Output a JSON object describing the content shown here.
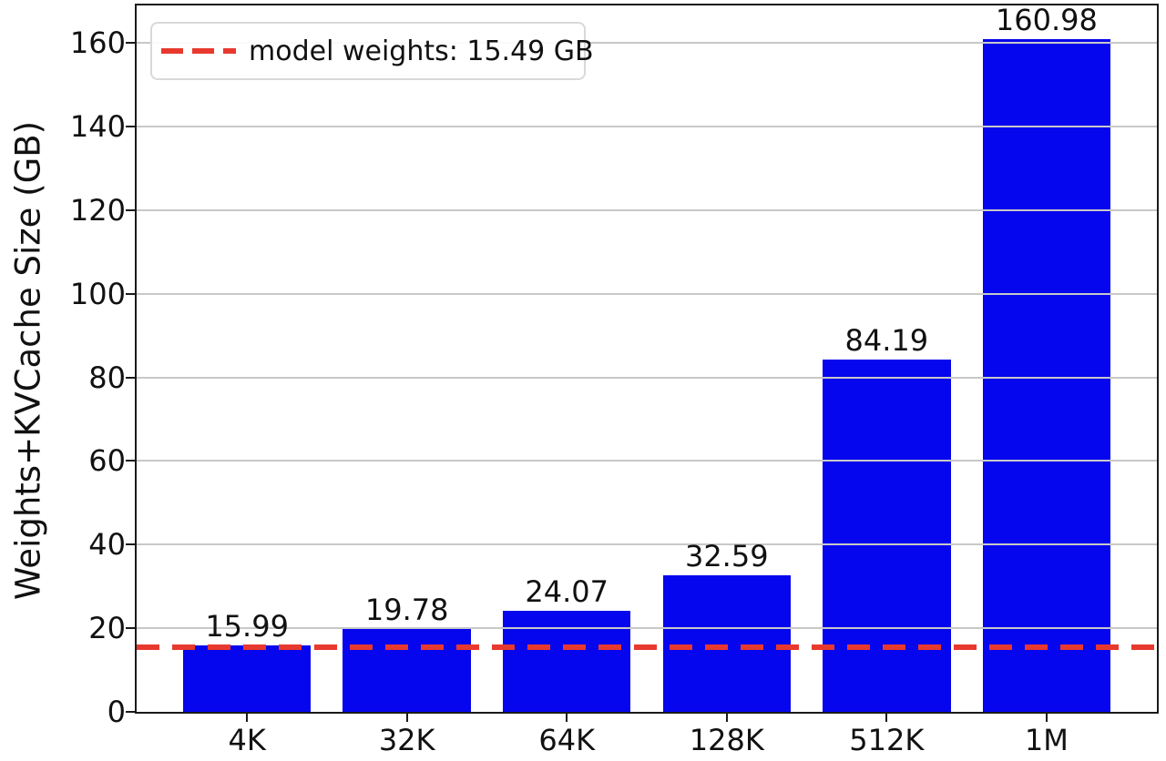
{
  "chart_data": {
    "type": "bar",
    "title": "",
    "categories": [
      "4K",
      "32K",
      "64K",
      "128K",
      "512K",
      "1M"
    ],
    "values": [
      15.99,
      19.78,
      24.07,
      32.59,
      84.19,
      160.98
    ],
    "value_labels": [
      "15.99",
      "19.78",
      "24.07",
      "32.59",
      "84.19",
      "160.98"
    ],
    "xlabel": "",
    "ylabel": "Weights+KVCache Size (GB)",
    "yticks": [
      0,
      20,
      40,
      60,
      80,
      100,
      120,
      140,
      160
    ],
    "ylim": [
      0,
      169.0
    ],
    "xlim": [
      -0.69,
      5.69
    ],
    "bar_width_units": 0.8,
    "bar_color": "#0505ee",
    "grid": "horizontal",
    "gridline_color": "#c8c8c8",
    "threshold": {
      "value": 15.49,
      "label": "model weights: 15.49 GB",
      "color": "#e8392e",
      "style": "dashed"
    },
    "legend_position": "upper-left"
  }
}
